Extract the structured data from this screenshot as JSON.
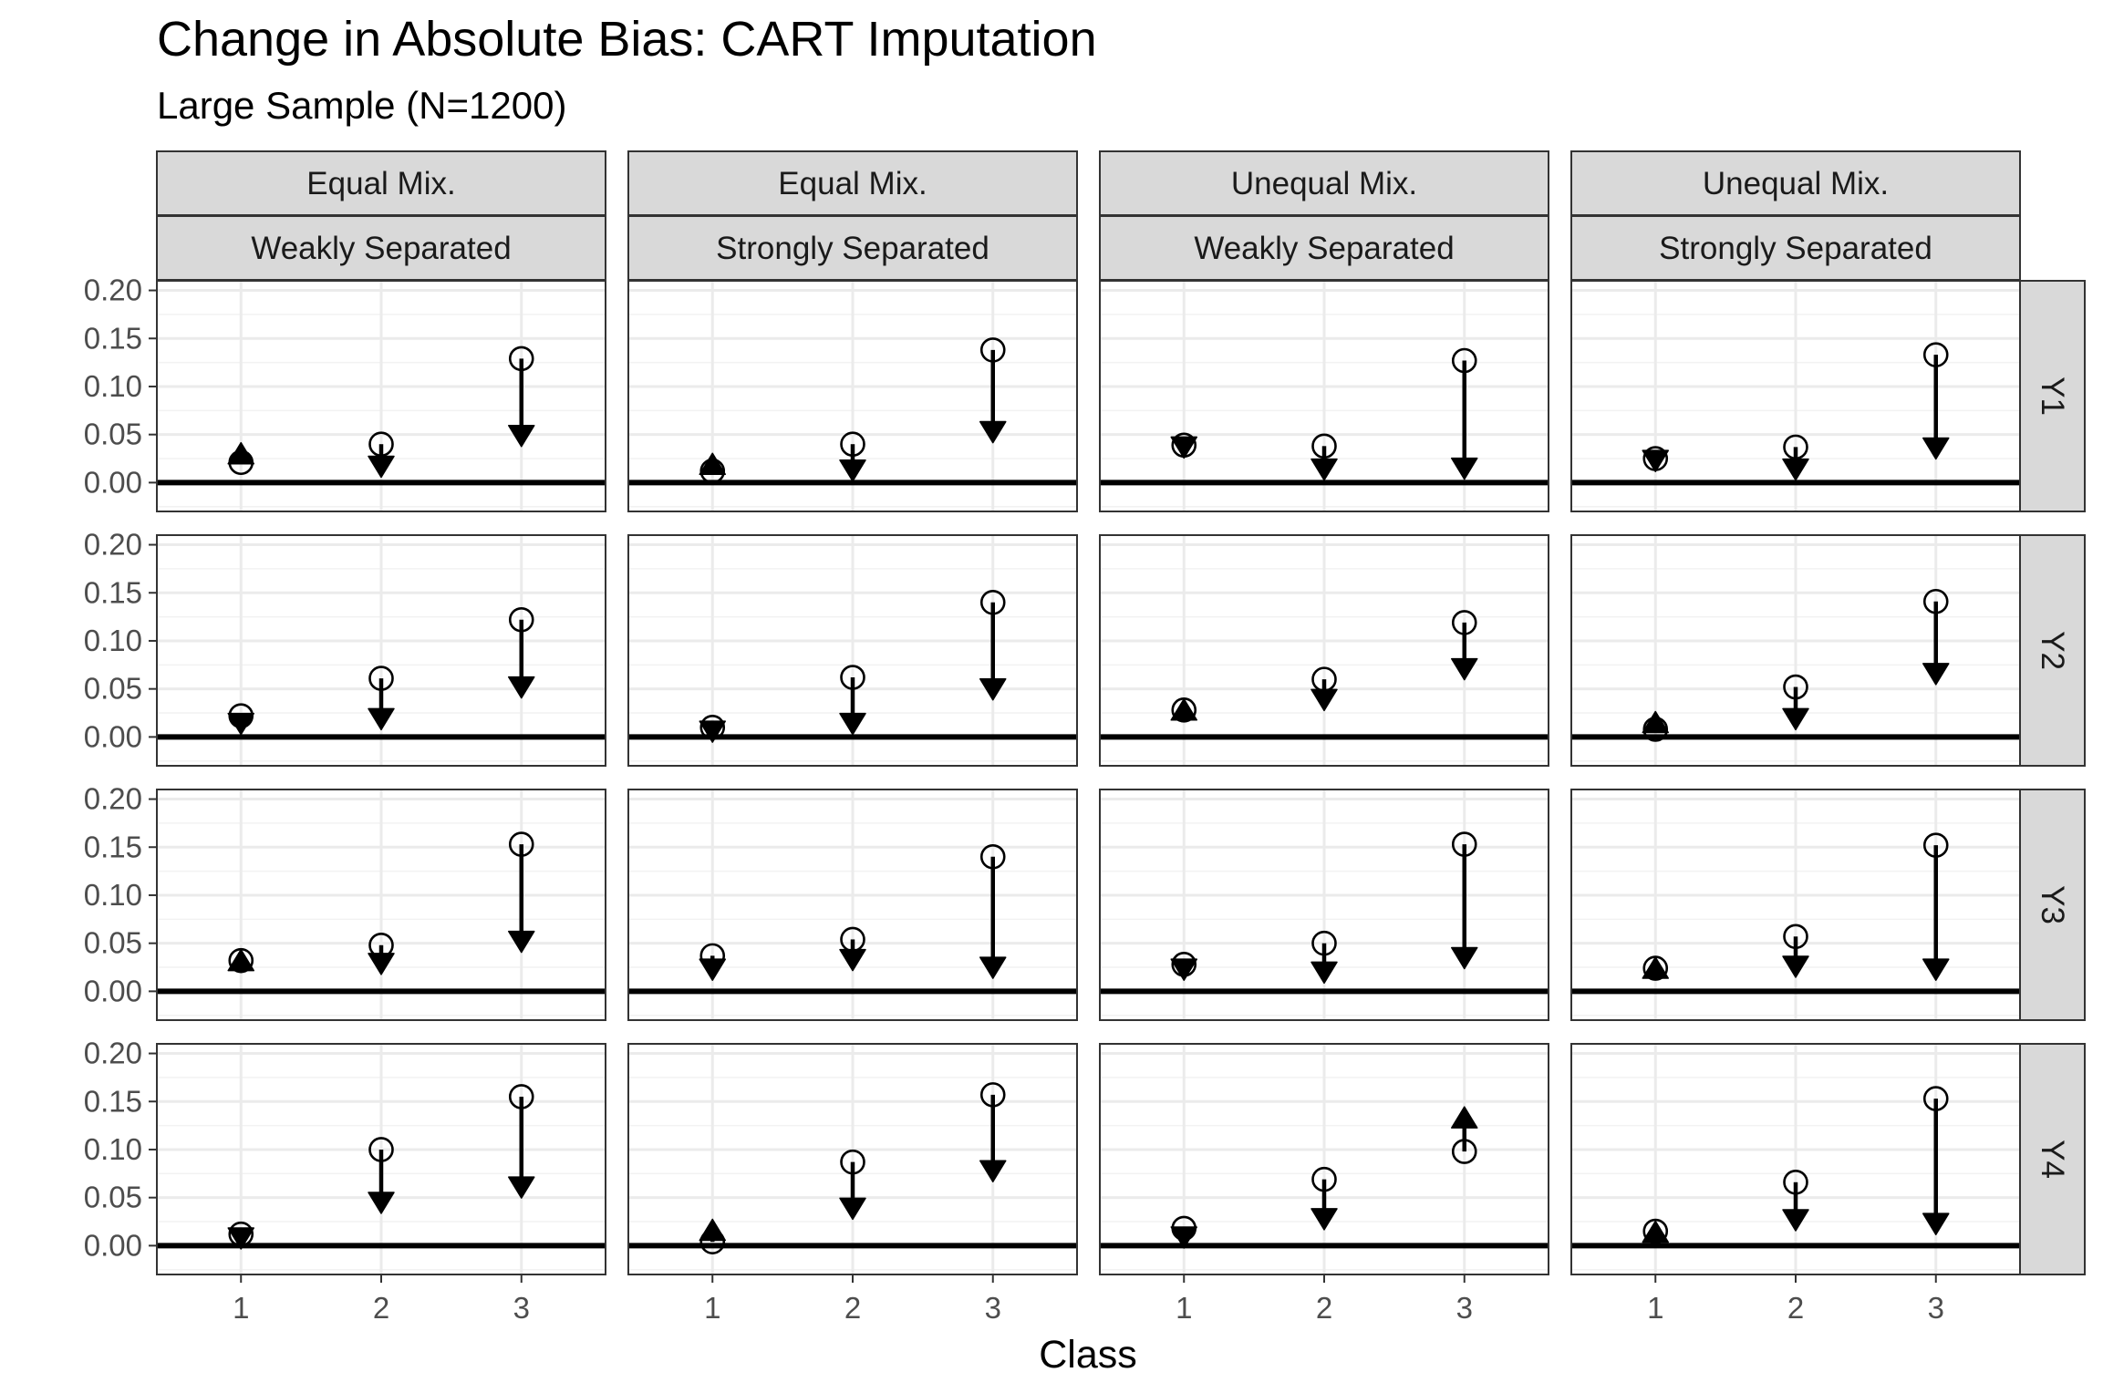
{
  "chart_data": {
    "type": "scatter",
    "title": "Change in Absolute Bias: CART Imputation",
    "subtitle": "Large Sample (N=1200)",
    "xlabel": "Class",
    "ylabel": "",
    "x": [
      1,
      2,
      3
    ],
    "ylim": [
      -0.03,
      0.21
    ],
    "yticks": [
      0.0,
      0.05,
      0.1,
      0.15,
      0.2
    ],
    "ytick_labels": [
      "0.00",
      "0.05",
      "0.10",
      "0.15",
      "0.20"
    ],
    "grid": true,
    "legend": "none",
    "columns": [
      {
        "mixture": "Equal Mix.",
        "separation": "Weakly Separated"
      },
      {
        "mixture": "Equal Mix.",
        "separation": "Strongly Separated"
      },
      {
        "mixture": "Unequal Mix.",
        "separation": "Weakly Separated"
      },
      {
        "mixture": "Unequal Mix.",
        "separation": "Strongly Separated"
      }
    ],
    "rows": [
      "Y1",
      "Y2",
      "Y3",
      "Y4"
    ],
    "marker_meaning": {
      "circle": "before",
      "triangle": "after"
    },
    "panels": [
      [
        {
          "before": [
            0.021,
            0.04,
            0.129
          ],
          "after": [
            0.031,
            0.016,
            0.048
          ]
        },
        {
          "before": [
            0.012,
            0.04,
            0.138
          ],
          "after": [
            0.02,
            0.012,
            0.052
          ]
        },
        {
          "before": [
            0.039,
            0.038,
            0.127
          ],
          "after": [
            0.036,
            0.013,
            0.014
          ]
        },
        {
          "before": [
            0.025,
            0.037,
            0.133
          ],
          "after": [
            0.022,
            0.013,
            0.035
          ]
        }
      ],
      [
        {
          "before": [
            0.022,
            0.061,
            0.122
          ],
          "after": [
            0.013,
            0.018,
            0.051
          ]
        },
        {
          "before": [
            0.01,
            0.062,
            0.14
          ],
          "after": [
            0.005,
            0.013,
            0.049
          ]
        },
        {
          "before": [
            0.028,
            0.06,
            0.119
          ],
          "after": [
            0.029,
            0.038,
            0.07
          ]
        },
        {
          "before": [
            0.008,
            0.052,
            0.141
          ],
          "after": [
            0.016,
            0.018,
            0.065
          ]
        }
      ],
      [
        {
          "before": [
            0.032,
            0.048,
            0.153
          ],
          "after": [
            0.033,
            0.028,
            0.051
          ]
        },
        {
          "before": [
            0.037,
            0.054,
            0.14
          ],
          "after": [
            0.022,
            0.032,
            0.024
          ]
        },
        {
          "before": [
            0.028,
            0.05,
            0.153
          ],
          "after": [
            0.022,
            0.019,
            0.034
          ]
        },
        {
          "before": [
            0.024,
            0.057,
            0.152
          ],
          "after": [
            0.025,
            0.025,
            0.022
          ]
        }
      ],
      [
        {
          "before": [
            0.012,
            0.1,
            0.155
          ],
          "after": [
            0.007,
            0.044,
            0.06
          ]
        },
        {
          "before": [
            0.004,
            0.087,
            0.157
          ],
          "after": [
            0.017,
            0.038,
            0.077
          ]
        },
        {
          "before": [
            0.018,
            0.069,
            0.098
          ],
          "after": [
            0.008,
            0.027,
            0.134
          ]
        },
        {
          "before": [
            0.015,
            0.066,
            0.153
          ],
          "after": [
            0.015,
            0.026,
            0.022
          ]
        }
      ]
    ]
  }
}
